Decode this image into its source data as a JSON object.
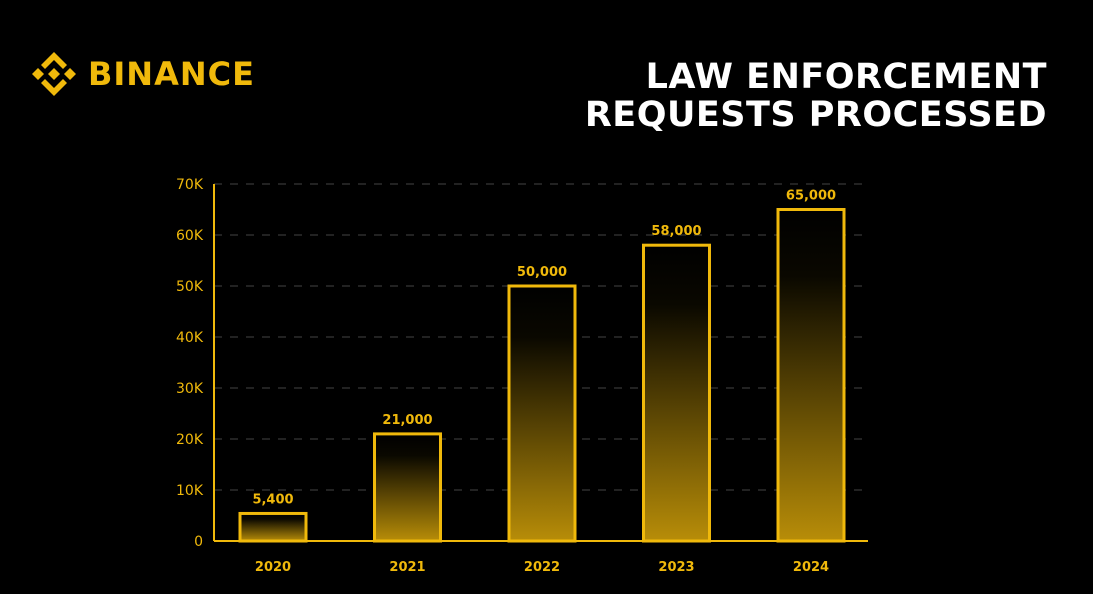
{
  "brand": {
    "name": "BINANCE",
    "logo_icon": "binance-logo-icon",
    "color": "#F0B90B"
  },
  "title_lines": [
    "LAW ENFORCEMENT",
    "REQUESTS PROCESSED"
  ],
  "colors": {
    "accent": "#F0B90B",
    "background": "#000000",
    "title": "#FFFFFF"
  },
  "chart_data": {
    "type": "bar",
    "title": "LAW ENFORCEMENT REQUESTS PROCESSED",
    "categories": [
      "2020",
      "2021",
      "2022",
      "2023",
      "2024"
    ],
    "values": [
      5400,
      21000,
      50000,
      58000,
      65000
    ],
    "value_labels": [
      "5,400",
      "21,000",
      "50,000",
      "58,000",
      "65,000"
    ],
    "yticks": [
      0,
      10000,
      20000,
      30000,
      40000,
      50000,
      60000,
      70000
    ],
    "ytick_labels": [
      "0",
      "10K",
      "20K",
      "30K",
      "40K",
      "50K",
      "60K",
      "70K"
    ],
    "ylim": [
      0,
      70000
    ],
    "xlabel": "",
    "ylabel": "",
    "grid": true,
    "legend": "none"
  }
}
